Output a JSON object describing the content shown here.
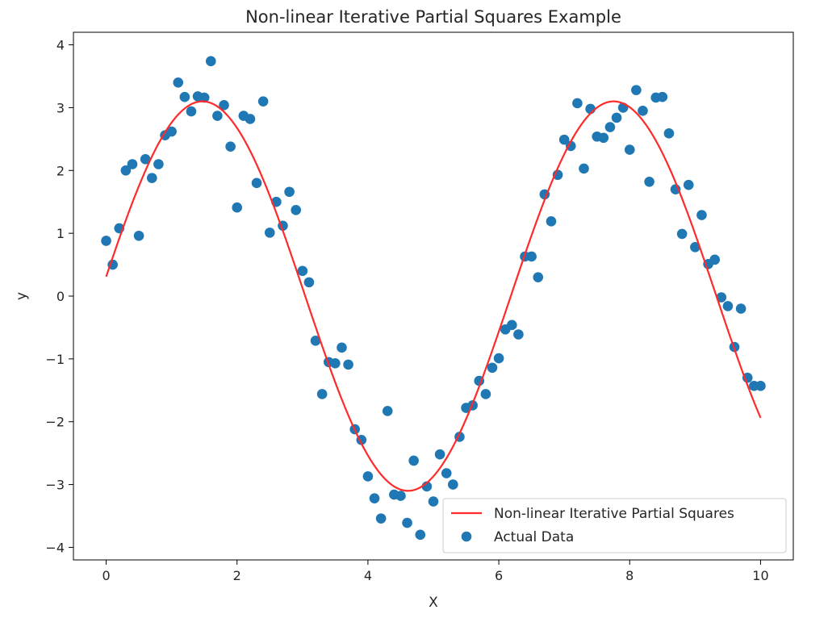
{
  "chart_data": {
    "type": "scatter",
    "title": "Non-linear Iterative Partial Squares Example",
    "xlabel": "X",
    "ylabel": "y",
    "xlim": [
      -0.5,
      10.5
    ],
    "ylim": [
      -4.2,
      4.2
    ],
    "xticks": [
      0,
      2,
      4,
      6,
      8,
      10
    ],
    "yticks": [
      -4,
      -3,
      -2,
      -1,
      0,
      1,
      2,
      3,
      4
    ],
    "grid": false,
    "legend_position": "lower-right",
    "series": [
      {
        "name": "Non-linear Iterative Partial Squares",
        "kind": "line",
        "color": "#ff2a2a",
        "function": "3.1*sin(x+0.1)",
        "x_range": [
          0,
          10
        ]
      },
      {
        "name": "Actual Data",
        "kind": "scatter",
        "color": "#1f77b4",
        "x": [
          0.0,
          0.1,
          0.2,
          0.3,
          0.4,
          0.5,
          0.6,
          0.7,
          0.8,
          0.9,
          1.0,
          1.1,
          1.2,
          1.3,
          1.4,
          1.5,
          1.6,
          1.7,
          1.8,
          1.9,
          2.0,
          2.1,
          2.2,
          2.3,
          2.4,
          2.5,
          2.6,
          2.7,
          2.8,
          2.9,
          3.0,
          3.1,
          3.2,
          3.3,
          3.4,
          3.5,
          3.6,
          3.7,
          3.8,
          3.9,
          4.0,
          4.1,
          4.2,
          4.3,
          4.4,
          4.5,
          4.6,
          4.7,
          4.8,
          4.9,
          5.0,
          5.1,
          5.2,
          5.3,
          5.4,
          5.5,
          5.6,
          5.7,
          5.8,
          5.9,
          6.0,
          6.1,
          6.2,
          6.3,
          6.4,
          6.5,
          6.6,
          6.7,
          6.8,
          6.9,
          7.0,
          7.1,
          7.2,
          7.3,
          7.4,
          7.5,
          7.6,
          7.7,
          7.8,
          7.9,
          8.0,
          8.1,
          8.2,
          8.3,
          8.4,
          8.5,
          8.6,
          8.7,
          8.8,
          8.9,
          9.0,
          9.1,
          9.2,
          9.3,
          9.4,
          9.5,
          9.6,
          9.7,
          9.8,
          9.9,
          10.0
        ],
        "y": [
          0.88,
          0.5,
          1.08,
          2.0,
          2.1,
          0.96,
          2.18,
          1.88,
          2.1,
          2.56,
          2.62,
          3.4,
          3.17,
          2.94,
          3.18,
          3.16,
          3.74,
          2.87,
          3.04,
          2.38,
          1.41,
          2.87,
          2.82,
          1.8,
          3.1,
          1.01,
          1.5,
          1.12,
          1.66,
          1.37,
          0.4,
          0.22,
          -0.71,
          -1.56,
          -1.05,
          -1.07,
          -0.82,
          -1.09,
          -2.12,
          -2.29,
          -2.87,
          -3.22,
          -3.54,
          -1.83,
          -3.16,
          -3.18,
          -3.61,
          -2.62,
          -3.8,
          -3.03,
          -3.27,
          -2.52,
          -2.82,
          -3.0,
          -2.24,
          -1.78,
          -1.74,
          -1.35,
          -1.56,
          -1.14,
          -0.99,
          -0.53,
          -0.46,
          -0.61,
          0.63,
          0.63,
          0.3,
          1.62,
          1.19,
          1.93,
          2.49,
          2.39,
          3.07,
          2.03,
          2.98,
          2.54,
          2.52,
          2.69,
          2.84,
          3.0,
          2.33,
          3.28,
          2.95,
          1.82,
          3.16,
          3.17,
          2.59,
          1.7,
          0.99,
          1.77,
          0.78,
          1.29,
          0.51,
          0.58,
          -0.02,
          -0.16,
          -0.81,
          -0.2,
          -1.3,
          -1.43,
          -1.43
        ]
      }
    ]
  }
}
